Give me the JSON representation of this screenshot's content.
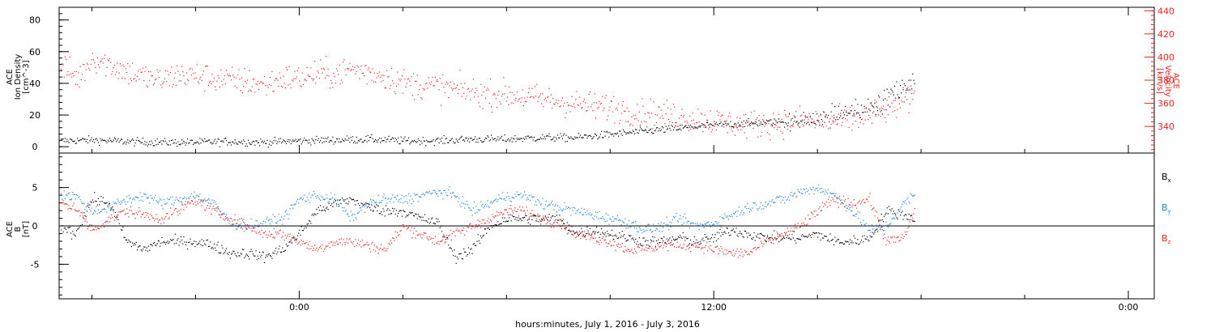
{
  "x_label": "hours:minutes, July  1, 2016 - July  3, 2016",
  "colors": {
    "black": "#000000",
    "red": "#e8201f",
    "blue": "#1f82e0"
  },
  "chart_data": [
    {
      "type": "scatter",
      "name": "top",
      "xlabel": "hours:minutes, July  1, 2016 - July  3, 2016",
      "x_ticks": [
        "0:00",
        "12:00",
        "0:00"
      ],
      "x_tick_hours": [
        24,
        36,
        48
      ],
      "xlim_hours": [
        17.05,
        48.75
      ],
      "data_end_hour": 41.8,
      "left_axis": {
        "label_lines": [
          "ACE",
          "Ion Density",
          "[cm^-3]"
        ],
        "ylim": [
          -4,
          88
        ],
        "tick_values": [
          0,
          20,
          40,
          60,
          80
        ],
        "tick_labels": [
          "0",
          "20",
          "40",
          "60",
          "80"
        ]
      },
      "right_axis": {
        "label_lines": [
          "ACE",
          "Velocity",
          "[km/s]"
        ],
        "ylim": [
          317,
          443
        ],
        "tick_values": [
          340,
          360,
          380,
          400,
          420,
          440
        ],
        "tick_labels": [
          "340",
          "360",
          "380",
          "400",
          "420",
          "440"
        ],
        "color": "#e8201f"
      },
      "series": [
        {
          "axis": "left",
          "color": "#000000",
          "points": [
            [
              17.1,
              4
            ],
            [
              18,
              4.5
            ],
            [
              19,
              3.5
            ],
            [
              20,
              3
            ],
            [
              21,
              3
            ],
            [
              22,
              3.5
            ],
            [
              23,
              3
            ],
            [
              24,
              4
            ],
            [
              25,
              4.5
            ],
            [
              26,
              5
            ],
            [
              27,
              4
            ],
            [
              28,
              4
            ],
            [
              29,
              5
            ],
            [
              30,
              5
            ],
            [
              31,
              6
            ],
            [
              32,
              6
            ],
            [
              33,
              8
            ],
            [
              34,
              10
            ],
            [
              35,
              12
            ],
            [
              36,
              14
            ],
            [
              37,
              15
            ],
            [
              38,
              16
            ],
            [
              39,
              17
            ],
            [
              40,
              22
            ],
            [
              41,
              30
            ],
            [
              41.8,
              43
            ]
          ]
        },
        {
          "axis": "right",
          "color": "#e8201f",
          "points": [
            [
              17.1,
              392
            ],
            [
              17.6,
              382
            ],
            [
              18,
              400
            ],
            [
              18.5,
              394
            ],
            [
              19,
              388
            ],
            [
              19.5,
              383
            ],
            [
              20,
              380
            ],
            [
              20.5,
              385
            ],
            [
              21,
              384
            ],
            [
              21.5,
              382
            ],
            [
              22,
              380
            ],
            [
              22.5,
              379
            ],
            [
              23,
              376
            ],
            [
              23.5,
              382
            ],
            [
              24,
              382
            ],
            [
              24.5,
              386
            ],
            [
              25,
              385
            ],
            [
              25.5,
              390
            ],
            [
              26,
              387
            ],
            [
              26.5,
              384
            ],
            [
              27,
              378
            ],
            [
              27.5,
              376
            ],
            [
              28,
              375
            ],
            [
              28.5,
              372
            ],
            [
              29,
              370
            ],
            [
              29.5,
              368
            ],
            [
              30,
              368
            ],
            [
              30.5,
              366
            ],
            [
              31,
              364
            ],
            [
              31.5,
              362
            ],
            [
              32,
              360
            ],
            [
              32.5,
              358
            ],
            [
              33,
              357
            ],
            [
              33.5,
              354
            ],
            [
              34,
              352
            ],
            [
              34.5,
              351
            ],
            [
              35,
              349
            ],
            [
              35.5,
              347
            ],
            [
              36,
              345
            ],
            [
              36.5,
              343
            ],
            [
              37,
              342
            ],
            [
              37.5,
              343
            ],
            [
              38,
              344
            ],
            [
              38.5,
              346
            ],
            [
              39,
              345
            ],
            [
              39.5,
              345
            ],
            [
              40,
              346
            ],
            [
              40.5,
              350
            ],
            [
              41,
              355
            ],
            [
              41.8,
              365
            ]
          ]
        }
      ]
    },
    {
      "type": "scatter",
      "name": "bottom",
      "xlabel": "hours:minutes, July  1, 2016 - July  3, 2016",
      "x_ticks": [
        "0:00",
        "12:00",
        "0:00"
      ],
      "x_tick_hours": [
        24,
        36,
        48
      ],
      "xlim_hours": [
        17.05,
        48.75
      ],
      "data_end_hour": 41.8,
      "left_axis": {
        "label_lines": [
          "ACE",
          "B",
          "[nT]"
        ],
        "ylim": [
          -9.5,
          9.5
        ],
        "tick_values": [
          -5,
          0,
          5
        ],
        "tick_labels": [
          "-5",
          "0",
          "5"
        ],
        "zero_line": true
      },
      "legend": {
        "placement": "right",
        "entries": [
          {
            "label": "B",
            "sub": "x",
            "color": "#000000"
          },
          {
            "label": "B",
            "sub": "y",
            "color": "#1f82e0"
          },
          {
            "label": "B",
            "sub": "z",
            "color": "#e8201f"
          }
        ]
      },
      "series": [
        {
          "axis": "left",
          "color": "#000000",
          "points": [
            [
              17.1,
              0
            ],
            [
              17.5,
              -1
            ],
            [
              18,
              3.5
            ],
            [
              18.5,
              3
            ],
            [
              19,
              -2
            ],
            [
              19.5,
              -3
            ],
            [
              20,
              -2
            ],
            [
              20.5,
              -2
            ],
            [
              21,
              -2
            ],
            [
              21.5,
              -2.5
            ],
            [
              22,
              -3.5
            ],
            [
              22.5,
              -3.5
            ],
            [
              23,
              -4
            ],
            [
              23.5,
              -3
            ],
            [
              24,
              -1
            ],
            [
              24.5,
              2
            ],
            [
              25,
              3
            ],
            [
              25.5,
              3.5
            ],
            [
              26,
              2.5
            ],
            [
              26.5,
              2
            ],
            [
              27,
              2
            ],
            [
              27.5,
              1
            ],
            [
              28,
              0.5
            ],
            [
              28.5,
              -4
            ],
            [
              29,
              -3
            ],
            [
              29.5,
              0
            ],
            [
              30,
              1
            ],
            [
              30.5,
              1
            ],
            [
              31,
              1
            ],
            [
              31.5,
              1
            ],
            [
              32,
              -1
            ],
            [
              32.5,
              -0.5
            ],
            [
              33,
              -1
            ],
            [
              33.5,
              -1.5
            ],
            [
              34,
              -2
            ],
            [
              34.5,
              -2
            ],
            [
              35,
              -1.5
            ],
            [
              35.5,
              -2
            ],
            [
              36,
              -1.5
            ],
            [
              36.5,
              -0.5
            ],
            [
              37,
              -1
            ],
            [
              37.5,
              -1.5
            ],
            [
              38,
              -1.5
            ],
            [
              38.5,
              -1.5
            ],
            [
              39,
              -1
            ],
            [
              39.5,
              -2
            ],
            [
              40,
              -2
            ],
            [
              40.5,
              -1.5
            ],
            [
              41,
              2
            ],
            [
              41.5,
              1.5
            ],
            [
              41.8,
              1
            ]
          ]
        },
        {
          "axis": "left",
          "color": "#1f82e0",
          "points": [
            [
              17.1,
              4
            ],
            [
              17.5,
              4
            ],
            [
              18,
              2
            ],
            [
              18.5,
              2.5
            ],
            [
              19,
              3.5
            ],
            [
              19.5,
              4
            ],
            [
              20,
              3
            ],
            [
              20.5,
              3.5
            ],
            [
              21,
              4
            ],
            [
              21.5,
              3
            ],
            [
              22,
              0.5
            ],
            [
              22.5,
              0
            ],
            [
              23,
              0.5
            ],
            [
              23.5,
              1
            ],
            [
              24,
              3.5
            ],
            [
              24.5,
              4
            ],
            [
              25,
              3.5
            ],
            [
              25.5,
              1
            ],
            [
              26,
              3
            ],
            [
              26.5,
              3.5
            ],
            [
              27,
              3.5
            ],
            [
              27.5,
              4
            ],
            [
              28,
              4.5
            ],
            [
              28.5,
              4
            ],
            [
              29,
              2
            ],
            [
              29.5,
              3
            ],
            [
              30,
              4
            ],
            [
              30.5,
              4
            ],
            [
              31,
              3
            ],
            [
              31.5,
              2.5
            ],
            [
              32,
              2
            ],
            [
              32.5,
              1.5
            ],
            [
              33,
              1
            ],
            [
              33.5,
              0.5
            ],
            [
              34,
              -0.5
            ],
            [
              34.5,
              0
            ],
            [
              35,
              1
            ],
            [
              35.5,
              0
            ],
            [
              36,
              0.5
            ],
            [
              36.5,
              1.5
            ],
            [
              37,
              2.5
            ],
            [
              37.5,
              3
            ],
            [
              38,
              3.5
            ],
            [
              38.5,
              4.5
            ],
            [
              39,
              5
            ],
            [
              39.5,
              4
            ],
            [
              40,
              2
            ],
            [
              40.5,
              -0.5
            ],
            [
              41,
              0
            ],
            [
              41.5,
              3
            ],
            [
              41.8,
              4
            ]
          ]
        },
        {
          "axis": "left",
          "color": "#e8201f",
          "points": [
            [
              17.1,
              3
            ],
            [
              17.5,
              2.5
            ],
            [
              18,
              -0.5
            ],
            [
              18.5,
              1
            ],
            [
              19,
              2
            ],
            [
              19.5,
              1.5
            ],
            [
              20,
              1
            ],
            [
              20.5,
              2
            ],
            [
              21,
              3.5
            ],
            [
              21.5,
              2
            ],
            [
              22,
              1
            ],
            [
              22.5,
              0
            ],
            [
              23,
              -1
            ],
            [
              23.5,
              -1
            ],
            [
              24,
              -2
            ],
            [
              24.5,
              -3
            ],
            [
              25,
              -2
            ],
            [
              25.5,
              -2
            ],
            [
              26,
              -2.5
            ],
            [
              26.5,
              -3
            ],
            [
              27,
              0
            ],
            [
              27.5,
              -1
            ],
            [
              28,
              -2
            ],
            [
              28.5,
              -1
            ],
            [
              29,
              0
            ],
            [
              29.5,
              1
            ],
            [
              30,
              2
            ],
            [
              30.5,
              2
            ],
            [
              31,
              1
            ],
            [
              31.5,
              0.5
            ],
            [
              32,
              -1
            ],
            [
              32.5,
              -1.5
            ],
            [
              33,
              -2
            ],
            [
              33.5,
              -3
            ],
            [
              34,
              -3
            ],
            [
              34.5,
              -2.5
            ],
            [
              35,
              -2.5
            ],
            [
              35.5,
              -2.5
            ],
            [
              36,
              -3
            ],
            [
              36.5,
              -3.5
            ],
            [
              37,
              -3.5
            ],
            [
              37.5,
              -2
            ],
            [
              38,
              -1
            ],
            [
              38.5,
              0
            ],
            [
              39,
              2
            ],
            [
              39.5,
              3.5
            ],
            [
              40,
              3
            ],
            [
              40.5,
              3.5
            ],
            [
              41,
              -2
            ],
            [
              41.5,
              -1.5
            ],
            [
              41.8,
              2
            ]
          ]
        }
      ]
    }
  ]
}
